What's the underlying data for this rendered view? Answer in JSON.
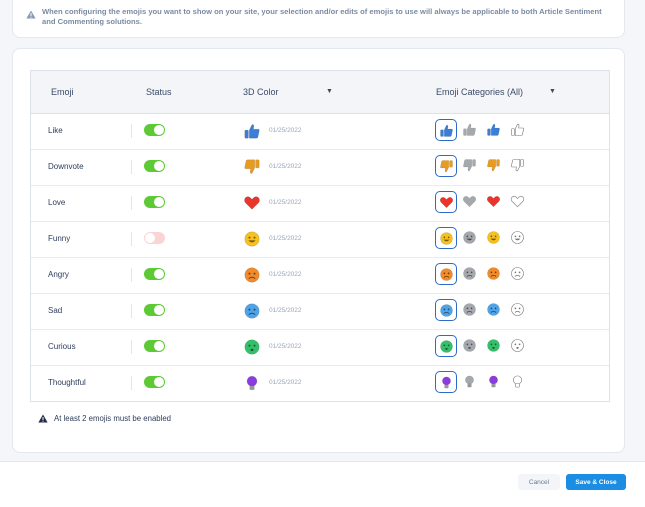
{
  "notice": {
    "text": "When configuring the emojis you want to show on your site, your selection and/or edits of emojis to use will always be applicable to both Article Sentiment and Commenting solutions."
  },
  "table": {
    "headers": {
      "emoji": "Emoji",
      "status": "Status",
      "color": "3D Color",
      "categories": "Emoji Categories (All)"
    },
    "rows": [
      {
        "name": "Like",
        "enabled": true,
        "date": "01/25/2022",
        "icon": "thumbs-up-icon",
        "color": "#3a7fd5"
      },
      {
        "name": "Downvote",
        "enabled": true,
        "date": "01/25/2022",
        "icon": "thumbs-down-icon",
        "color": "#e89b22"
      },
      {
        "name": "Love",
        "enabled": true,
        "date": "01/25/2022",
        "icon": "heart-icon",
        "color": "#e8362a"
      },
      {
        "name": "Funny",
        "enabled": false,
        "date": "01/25/2022",
        "icon": "laughing-face-icon",
        "color": "#f5c11e"
      },
      {
        "name": "Angry",
        "enabled": true,
        "date": "01/25/2022",
        "icon": "angry-face-icon",
        "color": "#f08a2a"
      },
      {
        "name": "Sad",
        "enabled": true,
        "date": "01/25/2022",
        "icon": "sad-face-icon",
        "color": "#4fa3e8"
      },
      {
        "name": "Curious",
        "enabled": true,
        "date": "01/25/2022",
        "icon": "curious-face-icon",
        "color": "#34c06a"
      },
      {
        "name": "Thoughtful",
        "enabled": true,
        "date": "01/25/2022",
        "icon": "lightbulb-icon",
        "color": "#8a3ce0"
      }
    ]
  },
  "warning": {
    "text": "At least 2 emojis must be enabled"
  },
  "buttons": {
    "cancel": "Cancel",
    "save": "Save & Close"
  }
}
